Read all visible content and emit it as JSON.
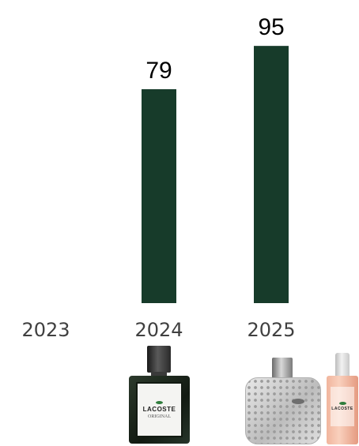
{
  "chart_data": {
    "type": "bar",
    "categories": [
      "2023",
      "2024",
      "2025"
    ],
    "values": [
      null,
      79,
      95
    ],
    "data_labels": [
      "",
      "79",
      "95"
    ],
    "title": "",
    "xlabel": "",
    "ylabel": "",
    "ylim": [
      0,
      100
    ],
    "grid": false,
    "legend": "none",
    "bar_color": "#173b2a"
  },
  "products": [
    {
      "icon": "lacoste-original-bottle-icon",
      "brand": "LACOSTE",
      "subtitle": "ORIGINAL",
      "year": "2024"
    },
    {
      "icon": "lacoste-silver-bottle-icon",
      "brand": "LACOSTE",
      "year": "2025"
    },
    {
      "icon": "lacoste-pink-bottle-icon",
      "brand": "LACOSTE",
      "year": "2025"
    }
  ]
}
